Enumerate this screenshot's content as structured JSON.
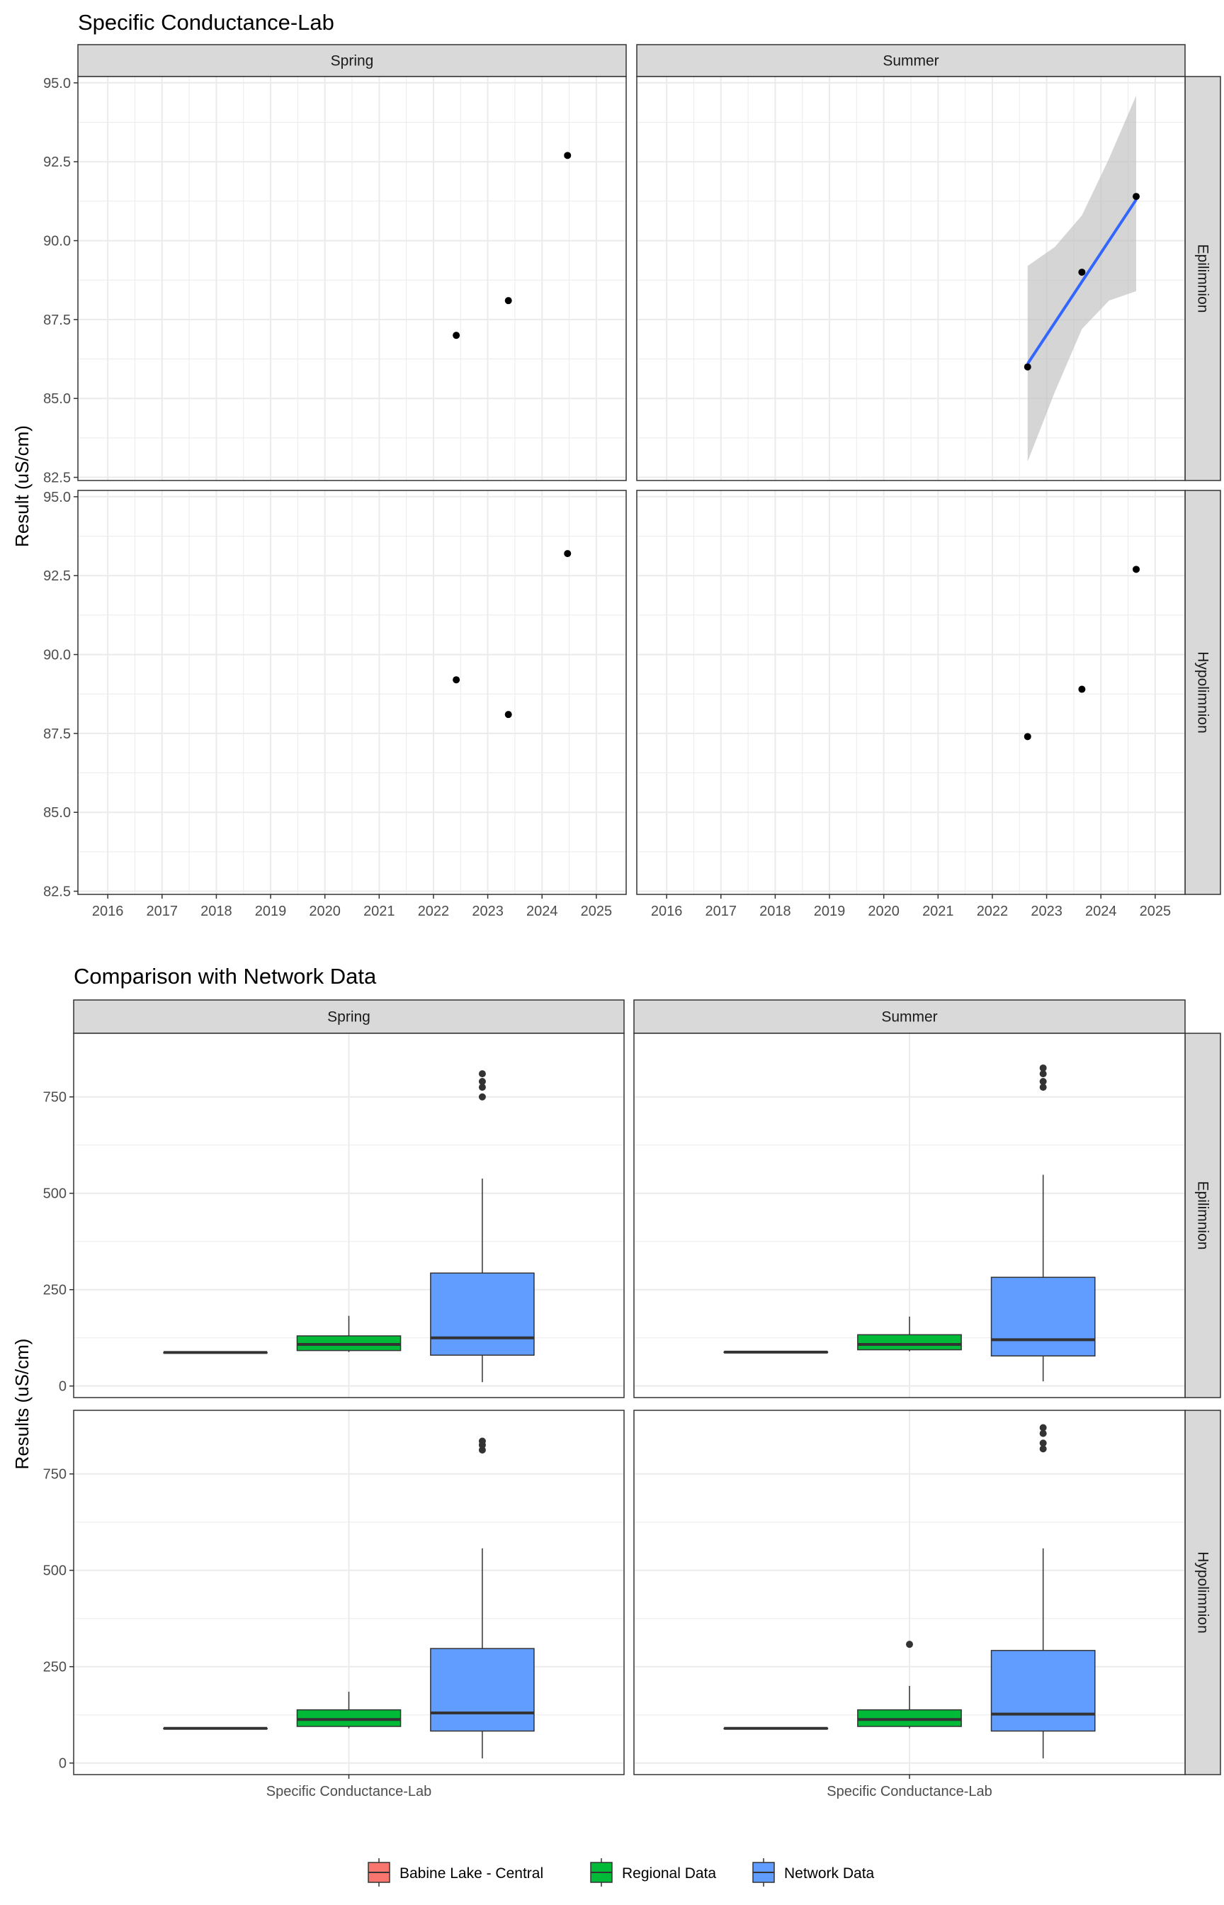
{
  "colors": {
    "strip_bg": "#d9d9d9",
    "panel_border": "#333333",
    "grid": "#ebebeb",
    "point": "#000000",
    "trend_line": "#3366ff",
    "ribbon": "#bfbfbf",
    "babine": "#f8766d",
    "regional": "#00ba38",
    "network": "#619cff"
  },
  "chart_data": [
    {
      "type": "scatter",
      "title": "Specific Conductance-Lab",
      "ylabel": "Result (uS/cm)",
      "xlabel": "",
      "xlim": [
        2015.45,
        2025.55
      ],
      "ylim": [
        82.4,
        95.2
      ],
      "x_ticks": [
        "2016",
        "2017",
        "2018",
        "2019",
        "2020",
        "2021",
        "2022",
        "2023",
        "2024",
        "2025"
      ],
      "y_ticks": [
        "82.5",
        "85.0",
        "87.5",
        "90.0",
        "92.5",
        "95.0"
      ],
      "grid": true,
      "columns": [
        "Spring",
        "Summer"
      ],
      "rows": [
        "Epilimnion",
        "Hypolimnion"
      ],
      "panels": [
        {
          "col": "Spring",
          "row": "Epilimnion",
          "points": [
            {
              "x": 2022.42,
              "y": 87.0
            },
            {
              "x": 2023.38,
              "y": 88.1
            },
            {
              "x": 2024.47,
              "y": 92.7
            }
          ]
        },
        {
          "col": "Summer",
          "row": "Epilimnion",
          "points": [
            {
              "x": 2022.65,
              "y": 86.0
            },
            {
              "x": 2023.65,
              "y": 89.0
            },
            {
              "x": 2024.65,
              "y": 91.4
            }
          ],
          "trend": {
            "x": [
              2022.65,
              2024.65
            ],
            "y": [
              86.1,
              91.3
            ]
          },
          "ribbon": {
            "x": [
              2022.65,
              2023.15,
              2023.65,
              2024.15,
              2024.65
            ],
            "lower": [
              83.0,
              85.2,
              87.2,
              88.1,
              88.4
            ],
            "upper": [
              89.2,
              89.8,
              90.8,
              92.6,
              94.6
            ]
          }
        },
        {
          "col": "Spring",
          "row": "Hypolimnion",
          "points": [
            {
              "x": 2022.42,
              "y": 89.2
            },
            {
              "x": 2023.38,
              "y": 88.1
            },
            {
              "x": 2024.47,
              "y": 93.2
            }
          ]
        },
        {
          "col": "Summer",
          "row": "Hypolimnion",
          "points": [
            {
              "x": 2022.65,
              "y": 87.4
            },
            {
              "x": 2023.65,
              "y": 88.9
            },
            {
              "x": 2024.65,
              "y": 92.7
            }
          ]
        }
      ]
    },
    {
      "type": "box",
      "title": "Comparison with Network Data",
      "ylabel": "Results (uS/cm)",
      "xlabel": "",
      "ylim": [
        -30,
        915
      ],
      "y_ticks": [
        "0",
        "250",
        "500",
        "750"
      ],
      "category": "Specific Conductance-Lab",
      "grid": true,
      "columns": [
        "Spring",
        "Summer"
      ],
      "rows": [
        "Epilimnion",
        "Hypolimnion"
      ],
      "legend": {
        "position": "bottom",
        "items": [
          {
            "name": "Babine Lake - Central",
            "color": "#f8766d"
          },
          {
            "name": "Regional Data",
            "color": "#00ba38"
          },
          {
            "name": "Network Data",
            "color": "#619cff"
          }
        ]
      },
      "panels": [
        {
          "col": "Spring",
          "row": "Epilimnion",
          "boxes": [
            {
              "group": "Babine Lake - Central",
              "min": 87,
              "q1": 87,
              "median": 87,
              "q3": 87,
              "max": 87,
              "outliers": []
            },
            {
              "group": "Regional Data",
              "min": 88,
              "q1": 92,
              "median": 108,
              "q3": 130,
              "max": 182,
              "outliers": []
            },
            {
              "group": "Network Data",
              "min": 10,
              "q1": 80,
              "median": 125,
              "q3": 293,
              "max": 538,
              "outliers": [
                750,
                775,
                790,
                810
              ]
            }
          ]
        },
        {
          "col": "Summer",
          "row": "Epilimnion",
          "boxes": [
            {
              "group": "Babine Lake - Central",
              "min": 88,
              "q1": 88,
              "median": 88,
              "q3": 88,
              "max": 88,
              "outliers": []
            },
            {
              "group": "Regional Data",
              "min": 90,
              "q1": 94,
              "median": 108,
              "q3": 133,
              "max": 180,
              "outliers": []
            },
            {
              "group": "Network Data",
              "min": 12,
              "q1": 78,
              "median": 120,
              "q3": 282,
              "max": 548,
              "outliers": [
                775,
                790,
                810,
                825
              ]
            }
          ]
        },
        {
          "col": "Spring",
          "row": "Hypolimnion",
          "boxes": [
            {
              "group": "Babine Lake - Central",
              "min": 90,
              "q1": 90,
              "median": 90,
              "q3": 90,
              "max": 90,
              "outliers": []
            },
            {
              "group": "Regional Data",
              "min": 90,
              "q1": 95,
              "median": 113,
              "q3": 138,
              "max": 185,
              "outliers": []
            },
            {
              "group": "Network Data",
              "min": 12,
              "q1": 83,
              "median": 130,
              "q3": 297,
              "max": 557,
              "outliers": [
                812,
                825,
                835
              ]
            }
          ]
        },
        {
          "col": "Summer",
          "row": "Hypolimnion",
          "boxes": [
            {
              "group": "Babine Lake - Central",
              "min": 90,
              "q1": 90,
              "median": 90,
              "q3": 90,
              "max": 90,
              "outliers": []
            },
            {
              "group": "Regional Data",
              "min": 90,
              "q1": 95,
              "median": 113,
              "q3": 138,
              "max": 200,
              "outliers": [
                308
              ]
            },
            {
              "group": "Network Data",
              "min": 12,
              "q1": 83,
              "median": 127,
              "q3": 292,
              "max": 557,
              "outliers": [
                815,
                830,
                855,
                870
              ]
            }
          ]
        }
      ]
    }
  ]
}
